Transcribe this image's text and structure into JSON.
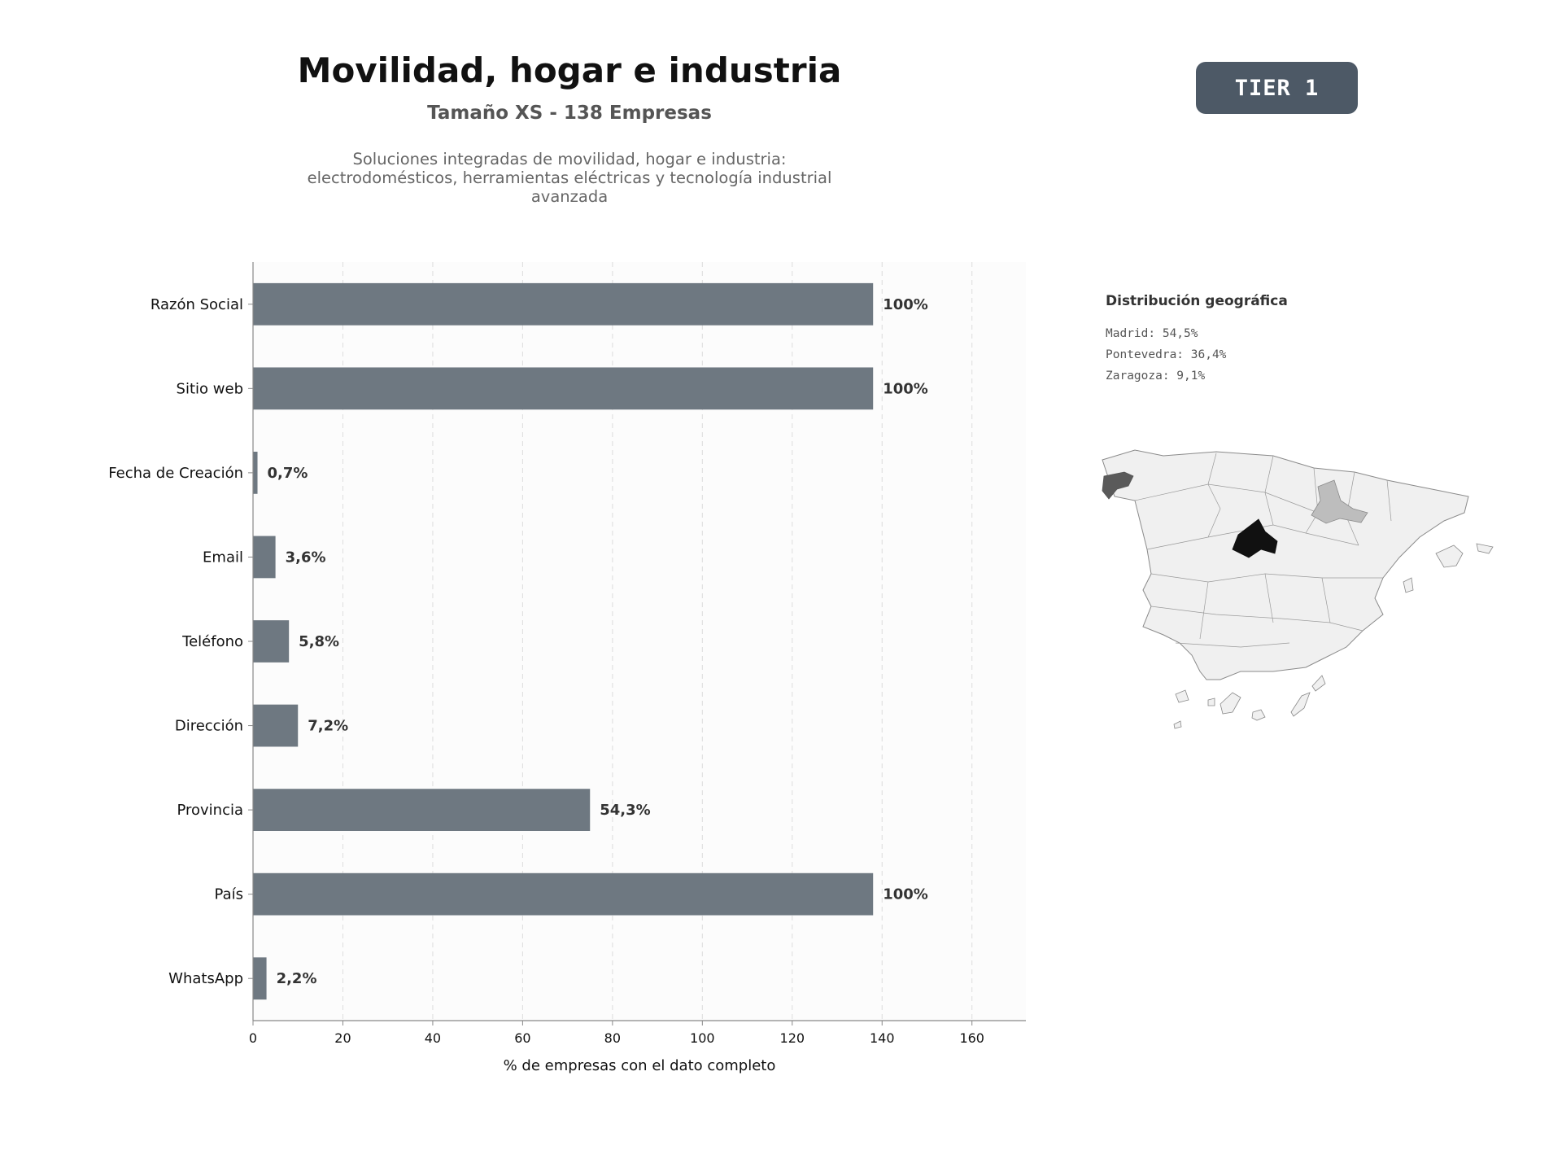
{
  "header": {
    "title": "Movilidad, hogar e industria",
    "subtitle": "Tamaño XS - 138 Empresas",
    "description": "Soluciones integradas de movilidad, hogar e industria: electrodomésticos, herramientas eléctricas y tecnología industrial avanzada",
    "badge": "TIER 1"
  },
  "colors": {
    "bar": "#6e7881",
    "badge": "#4d5966",
    "map_madrid": "#111111",
    "map_pontevedra": "#5a5a5a",
    "map_zaragoza": "#bdbdbd",
    "map_other": "#f0f0f0"
  },
  "chart_data": {
    "type": "bar",
    "orientation": "horizontal",
    "categories": [
      "Razón Social",
      "Sitio web",
      "Fecha de Creación",
      "Email",
      "Teléfono",
      "Dirección",
      "Provincia",
      "País",
      "WhatsApp"
    ],
    "values": [
      138,
      138,
      1,
      5,
      8,
      10,
      75,
      138,
      3
    ],
    "data_labels": [
      "100%",
      "100%",
      "0,7%",
      "3,6%",
      "5,8%",
      "7,2%",
      "54,3%",
      "100%",
      "2,2%"
    ],
    "xlabel": "% de empresas con el dato completo",
    "ylabel": "",
    "xlim": [
      0,
      172
    ],
    "xticks": [
      0,
      20,
      40,
      60,
      80,
      100,
      120,
      140,
      160
    ],
    "grid": "vertical dashed"
  },
  "geo": {
    "title": "Distribución geográfica",
    "items": [
      {
        "label": "Madrid: 54,5%"
      },
      {
        "label": "Pontevedra: 36,4%"
      },
      {
        "label": "Zaragoza: 9,1%"
      }
    ]
  }
}
